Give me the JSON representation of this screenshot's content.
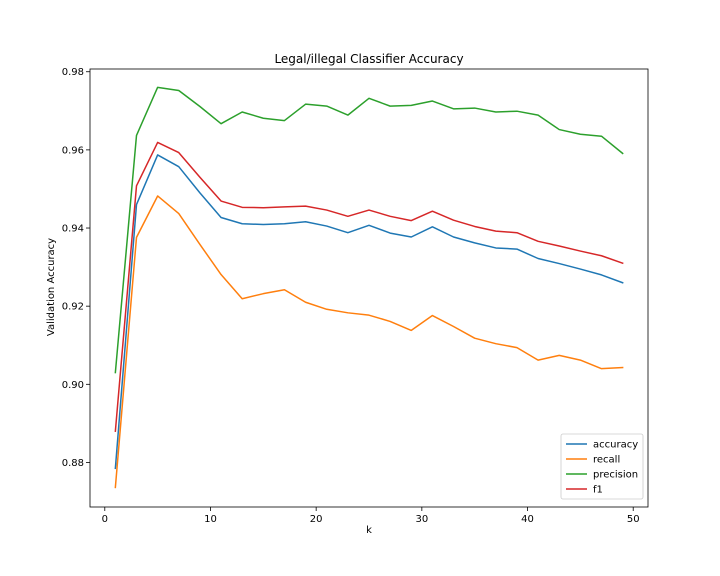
{
  "chart_data": {
    "type": "line",
    "title": "Legal/illegal Classifier Accuracy",
    "xlabel": "k",
    "ylabel": "Validation Accuracy",
    "xlim": [
      -1.4,
      51.4
    ],
    "ylim": [
      0.8686,
      0.9807
    ],
    "xticks": [
      0,
      10,
      20,
      30,
      40,
      50
    ],
    "yticks": [
      0.88,
      0.9,
      0.92,
      0.94,
      0.96,
      0.98
    ],
    "ytick_labels": [
      "0.88",
      "0.90",
      "0.92",
      "0.94",
      "0.96",
      "0.98"
    ],
    "grid": false,
    "legend_position": "lower-right",
    "x": [
      1,
      3,
      5,
      7,
      9,
      11,
      13,
      15,
      17,
      19,
      21,
      23,
      25,
      27,
      29,
      31,
      33,
      35,
      37,
      39,
      41,
      43,
      45,
      47,
      49
    ],
    "series": [
      {
        "name": "accuracy",
        "color": "#1f77b4",
        "values": [
          0.8785,
          0.946,
          0.9587,
          0.9557,
          0.949,
          0.9427,
          0.9411,
          0.9409,
          0.9411,
          0.9416,
          0.9405,
          0.9388,
          0.9407,
          0.9387,
          0.9377,
          0.9403,
          0.9377,
          0.9362,
          0.9349,
          0.9346,
          0.9322,
          0.9309,
          0.9295,
          0.928,
          0.926
        ]
      },
      {
        "name": "recall",
        "color": "#ff7f0e",
        "values": [
          0.8736,
          0.9376,
          0.9482,
          0.9437,
          0.9358,
          0.9281,
          0.9219,
          0.9232,
          0.9242,
          0.921,
          0.9192,
          0.9183,
          0.9177,
          0.9161,
          0.9138,
          0.9176,
          0.9148,
          0.9118,
          0.9104,
          0.9094,
          0.9062,
          0.9074,
          0.9062,
          0.904,
          0.9043
        ]
      },
      {
        "name": "precision",
        "color": "#2ca02c",
        "values": [
          0.903,
          0.9637,
          0.976,
          0.9752,
          0.9711,
          0.9667,
          0.9697,
          0.9681,
          0.9675,
          0.9717,
          0.9712,
          0.9689,
          0.9732,
          0.9712,
          0.9714,
          0.9725,
          0.9705,
          0.9707,
          0.9697,
          0.9699,
          0.9689,
          0.9652,
          0.964,
          0.9635,
          0.9591
        ]
      },
      {
        "name": "f1",
        "color": "#d62728",
        "values": [
          0.888,
          0.9508,
          0.9619,
          0.9593,
          0.953,
          0.9469,
          0.9453,
          0.9452,
          0.9454,
          0.9456,
          0.9446,
          0.943,
          0.9446,
          0.943,
          0.9419,
          0.9443,
          0.942,
          0.9404,
          0.9392,
          0.9388,
          0.9366,
          0.9354,
          0.9341,
          0.9329,
          0.931
        ]
      }
    ]
  }
}
